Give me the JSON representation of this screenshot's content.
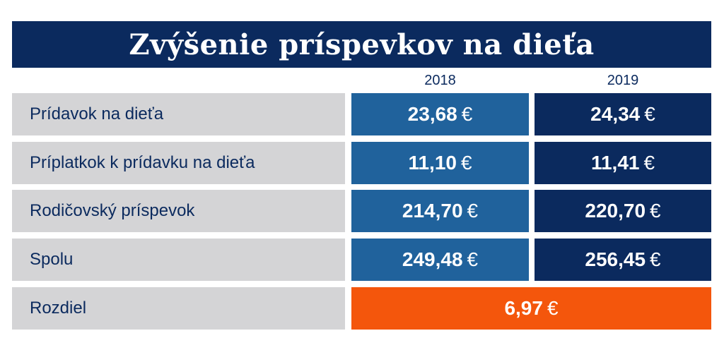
{
  "title": "Zvýšenie príspevkov na dieťa",
  "colors": {
    "title_bg": "#0b2a5e",
    "col_2018": "#20629c",
    "col_2019": "#0b2a5e",
    "diff": "#f4560c",
    "label_bg": "#d4d4d6"
  },
  "chart_data": {
    "type": "table",
    "title": "Zvýšenie príspevkov na dieťa",
    "columns": [
      "2018",
      "2019"
    ],
    "currency": "€",
    "rows": [
      {
        "label": "Prídavok na dieťa",
        "values": [
          "23,68",
          "24,34"
        ]
      },
      {
        "label": "Príplatkok k prídavku na dieťa",
        "values": [
          "11,10",
          "11,41"
        ]
      },
      {
        "label": "Rodičovský príspevok",
        "values": [
          "214,70",
          "220,70"
        ]
      },
      {
        "label": "Spolu",
        "values": [
          "249,48",
          "256,45"
        ]
      }
    ],
    "difference": {
      "label": "Rozdiel",
      "value": "6,97"
    }
  }
}
